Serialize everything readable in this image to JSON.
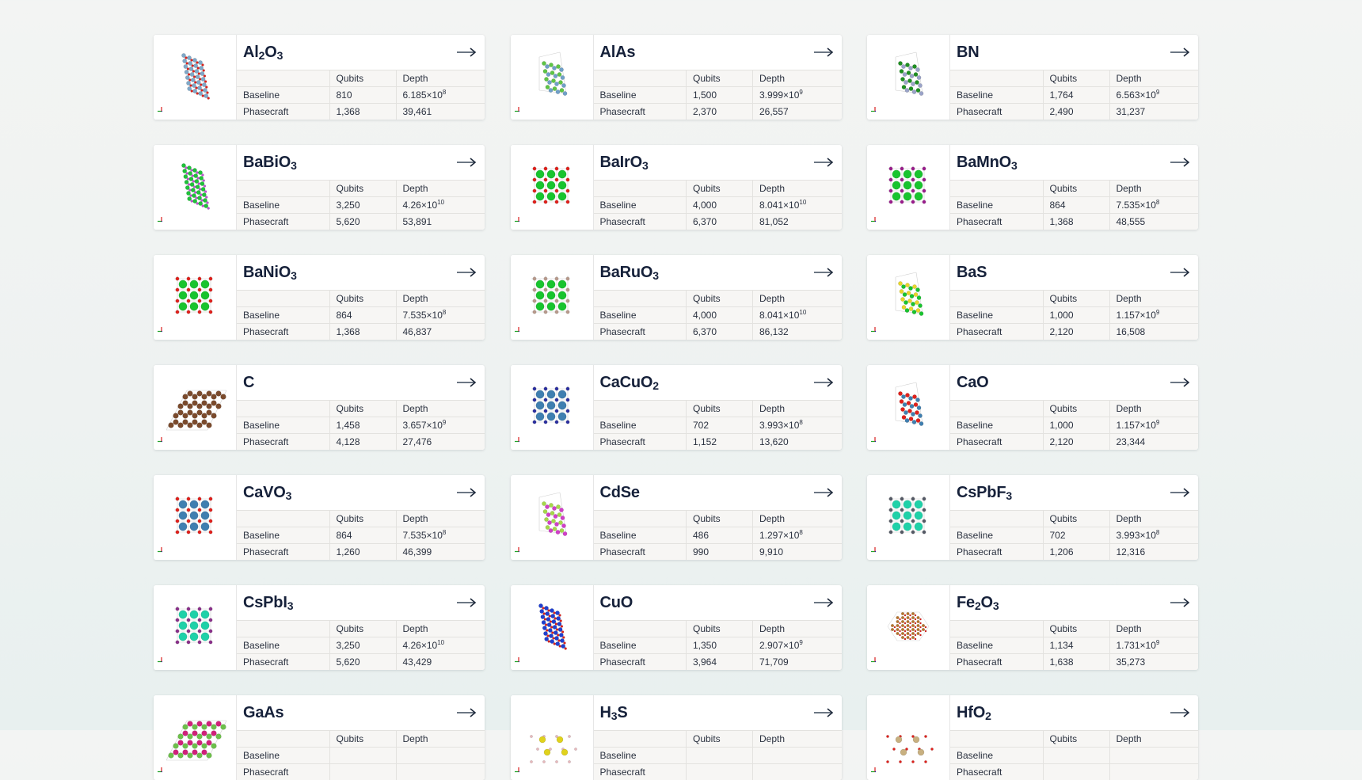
{
  "table_headers": {
    "label": "",
    "qubits": "Qubits",
    "depth": "Depth"
  },
  "row_labels": {
    "baseline": "Baseline",
    "phasecraft": "Phasecraft"
  },
  "icons": {
    "open": "arrow-right-icon",
    "axes": "axes-triad-icon"
  },
  "colors": {
    "title": "#16213a",
    "arrow": "#3c4a5c",
    "table_bg": "#f7f6f4",
    "border": "#e3e2df",
    "page_bg": "#f2f4f3"
  },
  "materials": [
    {
      "name": "Al2O3",
      "title_parts": [
        [
          "Al",
          ""
        ],
        [
          "2",
          "sub"
        ],
        [
          "O",
          ""
        ],
        [
          "3",
          "sub"
        ]
      ],
      "baseline": {
        "qubits": "810",
        "depth_mantissa": "6.185×10",
        "depth_exp": "8"
      },
      "phasecraft": {
        "qubits": "1,368",
        "depth": "39,461"
      },
      "atoms": [
        "#7fa8c9",
        "#e0201b"
      ],
      "layout": "slab"
    },
    {
      "name": "AlAs",
      "title_parts": [
        [
          "AlAs",
          ""
        ]
      ],
      "baseline": {
        "qubits": "1,500",
        "depth_mantissa": "3.999×10",
        "depth_exp": "9"
      },
      "phasecraft": {
        "qubits": "2,370",
        "depth": "26,557"
      },
      "atoms": [
        "#6fa0c8",
        "#5ec545"
      ],
      "layout": "hex"
    },
    {
      "name": "BN",
      "title_parts": [
        [
          "BN",
          ""
        ]
      ],
      "baseline": {
        "qubits": "1,764",
        "depth_mantissa": "6.563×10",
        "depth_exp": "9"
      },
      "phasecraft": {
        "qubits": "2,490",
        "depth": "31,237"
      },
      "atoms": [
        "#9aa3c8",
        "#1f8f22"
      ],
      "layout": "hex"
    },
    {
      "name": "BaBiO3",
      "title_parts": [
        [
          "BaBiO",
          ""
        ],
        [
          "3",
          "sub"
        ]
      ],
      "baseline": {
        "qubits": "3,250",
        "depth_mantissa": "4.26×10",
        "depth_exp": "10"
      },
      "phasecraft": {
        "qubits": "5,620",
        "depth": "53,891"
      },
      "atoms": [
        "#1fc23a",
        "#c24fd6"
      ],
      "layout": "slab"
    },
    {
      "name": "BaIrO3",
      "title_parts": [
        [
          "BaIrO",
          ""
        ],
        [
          "3",
          "sub"
        ]
      ],
      "baseline": {
        "qubits": "4,000",
        "depth_mantissa": "8.041×10",
        "depth_exp": "10"
      },
      "phasecraft": {
        "qubits": "6,370",
        "depth": "81,052"
      },
      "atoms": [
        "#18c42e",
        "#e0201b"
      ],
      "layout": "cubic"
    },
    {
      "name": "BaMnO3",
      "title_parts": [
        [
          "BaMnO",
          ""
        ],
        [
          "3",
          "sub"
        ]
      ],
      "baseline": {
        "qubits": "864",
        "depth_mantissa": "7.535×10",
        "depth_exp": "8"
      },
      "phasecraft": {
        "qubits": "1,368",
        "depth": "48,555"
      },
      "atoms": [
        "#18c42e",
        "#9a1c8c"
      ],
      "layout": "cubic"
    },
    {
      "name": "BaNiO3",
      "title_parts": [
        [
          "BaNiO",
          ""
        ],
        [
          "3",
          "sub"
        ]
      ],
      "baseline": {
        "qubits": "864",
        "depth_mantissa": "7.535×10",
        "depth_exp": "8"
      },
      "phasecraft": {
        "qubits": "1,368",
        "depth": "46,837"
      },
      "atoms": [
        "#18c42e",
        "#e0201b"
      ],
      "layout": "cubic"
    },
    {
      "name": "BaRuO3",
      "title_parts": [
        [
          "BaRuO",
          ""
        ],
        [
          "3",
          "sub"
        ]
      ],
      "baseline": {
        "qubits": "4,000",
        "depth_mantissa": "8.041×10",
        "depth_exp": "10"
      },
      "phasecraft": {
        "qubits": "6,370",
        "depth": "86,132"
      },
      "atoms": [
        "#18c42e",
        "#b89a8c"
      ],
      "layout": "cubic"
    },
    {
      "name": "BaS",
      "title_parts": [
        [
          "BaS",
          ""
        ]
      ],
      "baseline": {
        "qubits": "1,000",
        "depth_mantissa": "1.157×10",
        "depth_exp": "9"
      },
      "phasecraft": {
        "qubits": "2,120",
        "depth": "16,508"
      },
      "atoms": [
        "#18c42e",
        "#e8d62a"
      ],
      "layout": "hex"
    },
    {
      "name": "C",
      "title_parts": [
        [
          "C",
          ""
        ]
      ],
      "baseline": {
        "qubits": "1,458",
        "depth_mantissa": "3.657×10",
        "depth_exp": "9"
      },
      "phasecraft": {
        "qubits": "4,128",
        "depth": "27,476"
      },
      "atoms": [
        "#7a4a2c",
        "#7a4a2c"
      ],
      "layout": "wide"
    },
    {
      "name": "CaCuO2",
      "title_parts": [
        [
          "CaCuO",
          ""
        ],
        [
          "2",
          "sub"
        ]
      ],
      "baseline": {
        "qubits": "702",
        "depth_mantissa": "3.993×10",
        "depth_exp": "8"
      },
      "phasecraft": {
        "qubits": "1,152",
        "depth": "13,620"
      },
      "atoms": [
        "#3f7fb0",
        "#2b2fa0"
      ],
      "layout": "cubic"
    },
    {
      "name": "CaO",
      "title_parts": [
        [
          "CaO",
          ""
        ]
      ],
      "baseline": {
        "qubits": "1,000",
        "depth_mantissa": "1.157×10",
        "depth_exp": "9"
      },
      "phasecraft": {
        "qubits": "2,120",
        "depth": "23,344"
      },
      "atoms": [
        "#3f7fb0",
        "#e0201b"
      ],
      "layout": "hex"
    },
    {
      "name": "CaVO3",
      "title_parts": [
        [
          "CaVO",
          ""
        ],
        [
          "3",
          "sub"
        ]
      ],
      "baseline": {
        "qubits": "864",
        "depth_mantissa": "7.535×10",
        "depth_exp": "8"
      },
      "phasecraft": {
        "qubits": "1,260",
        "depth": "46,399"
      },
      "atoms": [
        "#3f7fb0",
        "#e0201b"
      ],
      "layout": "cubic"
    },
    {
      "name": "CdSe",
      "title_parts": [
        [
          "CdSe",
          ""
        ]
      ],
      "baseline": {
        "qubits": "486",
        "depth_mantissa": "1.297×10",
        "depth_exp": "8"
      },
      "phasecraft": {
        "qubits": "990",
        "depth": "9,910"
      },
      "atoms": [
        "#d23ec8",
        "#a6d84a"
      ],
      "layout": "hex"
    },
    {
      "name": "CsPbF3",
      "title_parts": [
        [
          "CsPbF",
          ""
        ],
        [
          "3",
          "sub"
        ]
      ],
      "baseline": {
        "qubits": "702",
        "depth_mantissa": "3.993×10",
        "depth_exp": "8"
      },
      "phasecraft": {
        "qubits": "1,206",
        "depth": "12,316"
      },
      "atoms": [
        "#1fd1a8",
        "#555a66"
      ],
      "layout": "cubic"
    },
    {
      "name": "CsPbI3",
      "title_parts": [
        [
          "CsPbI",
          ""
        ],
        [
          "3",
          "sub"
        ]
      ],
      "baseline": {
        "qubits": "3,250",
        "depth_mantissa": "4.26×10",
        "depth_exp": "10"
      },
      "phasecraft": {
        "qubits": "5,620",
        "depth": "43,429"
      },
      "atoms": [
        "#1fd1a8",
        "#8a2f8a"
      ],
      "layout": "cubic"
    },
    {
      "name": "CuO",
      "title_parts": [
        [
          "CuO",
          ""
        ]
      ],
      "baseline": {
        "qubits": "1,350",
        "depth_mantissa": "2.907×10",
        "depth_exp": "9"
      },
      "phasecraft": {
        "qubits": "3,964",
        "depth": "71,709"
      },
      "atoms": [
        "#1f3fd0",
        "#e0201b"
      ],
      "layout": "slab"
    },
    {
      "name": "Fe2O3",
      "title_parts": [
        [
          "Fe",
          ""
        ],
        [
          "2",
          "sub"
        ],
        [
          "O",
          ""
        ],
        [
          "3",
          "sub"
        ]
      ],
      "baseline": {
        "qubits": "1,134",
        "depth_mantissa": "1.731×10",
        "depth_exp": "9"
      },
      "phasecraft": {
        "qubits": "1,638",
        "depth": "35,273"
      },
      "atoms": [
        "#b8742a",
        "#e0201b"
      ],
      "layout": "hexagon"
    },
    {
      "name": "GaAs",
      "title_parts": [
        [
          "GaAs",
          ""
        ]
      ],
      "baseline": null,
      "phasecraft": null,
      "atoms": [
        "#6cc04a",
        "#d0207a"
      ],
      "layout": "wide"
    },
    {
      "name": "H3S",
      "title_parts": [
        [
          "H",
          ""
        ],
        [
          "3",
          "sub"
        ],
        [
          "S",
          ""
        ]
      ],
      "baseline": null,
      "phasecraft": null,
      "atoms": [
        "#e0d21c",
        "#e8b8bc"
      ],
      "layout": "sparse"
    },
    {
      "name": "HfO2",
      "title_parts": [
        [
          "HfO",
          ""
        ],
        [
          "2",
          "sub"
        ]
      ],
      "baseline": null,
      "phasecraft": null,
      "atoms": [
        "#c8b080",
        "#e0201b"
      ],
      "layout": "sparse"
    }
  ]
}
